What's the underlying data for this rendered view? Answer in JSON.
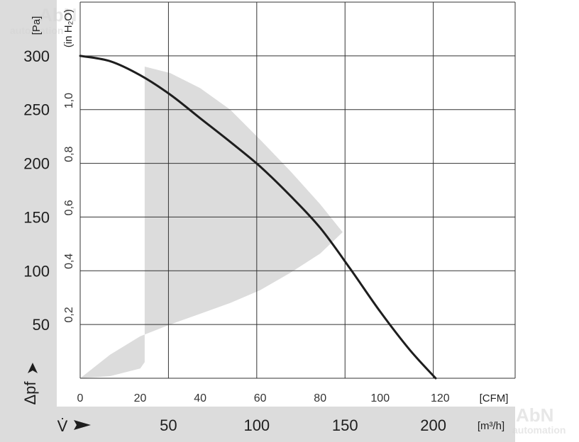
{
  "chart_data": {
    "type": "line",
    "x_cfm": {
      "ticks": [
        0,
        20,
        40,
        60,
        80,
        100,
        120
      ],
      "range": [
        0,
        145
      ],
      "unit": "[CFM]"
    },
    "x_m3h": {
      "ticks": [
        50,
        100,
        150,
        200
      ],
      "unit": "[m³/h]",
      "symbol": "V̇"
    },
    "y_pa": {
      "ticks": [
        50,
        100,
        150,
        200,
        250,
        300
      ],
      "range": [
        0,
        350
      ],
      "unit": "[Pa]",
      "symbol": "Δpf"
    },
    "y_inh2o": {
      "ticks": [
        "0,2",
        "0,4",
        "0,6",
        "0,8",
        "1,0"
      ],
      "unit": "(in H₂O)"
    },
    "series": [
      {
        "x": [
          0,
          10,
          20,
          30,
          40,
          50,
          60,
          70,
          80,
          90,
          100,
          110,
          118.5
        ],
        "y": [
          300,
          295,
          282,
          264,
          242,
          220,
          197,
          170,
          140,
          102,
          62,
          26,
          0
        ]
      }
    ],
    "operating_range": {
      "x": [
        0,
        10,
        20,
        21.5,
        21.5,
        30,
        40,
        50,
        60,
        70,
        80,
        87.5,
        80,
        70,
        60,
        50,
        40,
        30,
        20,
        10
      ],
      "y": [
        0,
        2,
        9,
        15,
        290,
        284,
        270,
        250,
        222,
        193,
        162,
        136,
        116,
        98,
        82,
        70,
        60,
        50,
        39,
        22
      ]
    },
    "grid": true
  },
  "watermark": {
    "brand": "AbN",
    "sub": "automation"
  }
}
